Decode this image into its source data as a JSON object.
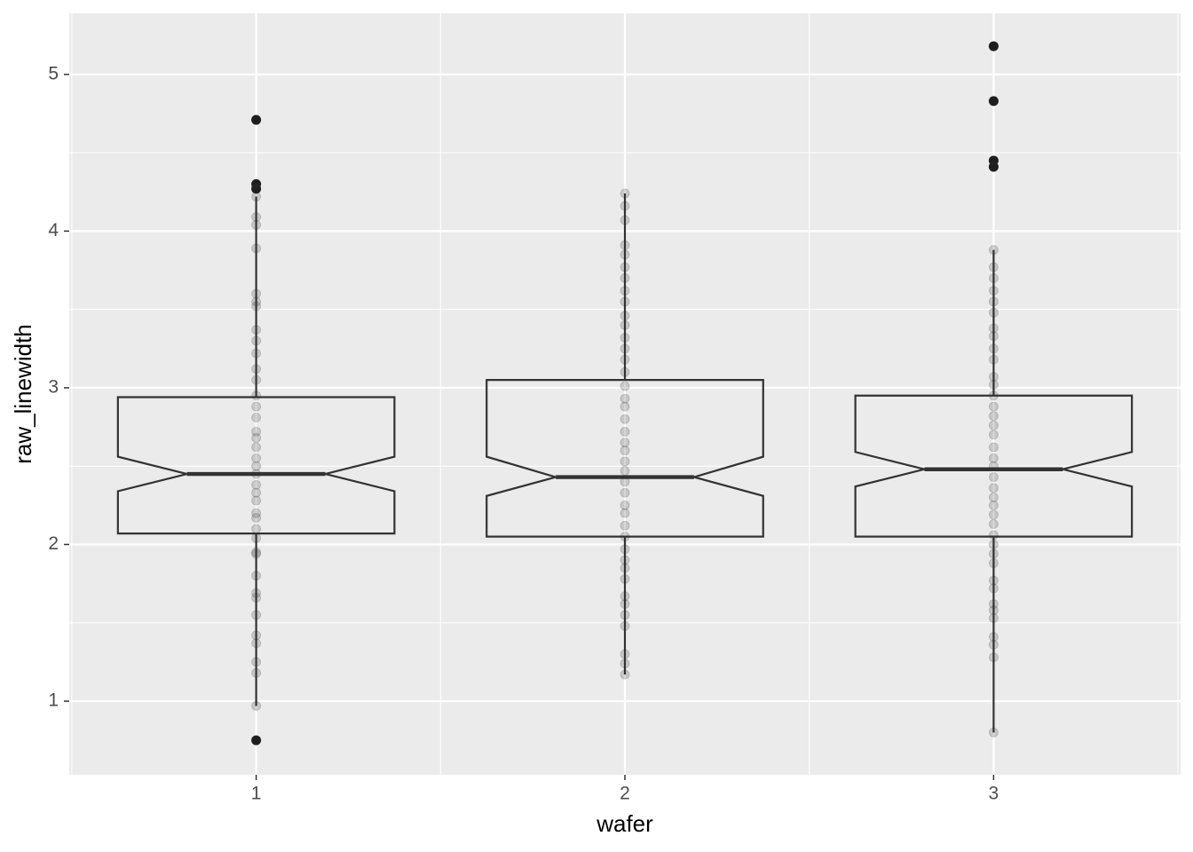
{
  "chart_data": {
    "type": "boxplot",
    "x_label": "wafer",
    "y_label": "raw_linewidth",
    "categories": [
      "1",
      "2",
      "3"
    ],
    "ylim": [
      0.53,
      5.39
    ],
    "yticks": [
      1,
      2,
      3,
      4,
      5
    ],
    "yminorticks": [
      1.5,
      2.5,
      3.5,
      4.5
    ],
    "grid": true,
    "notched": true,
    "box_color": "#333333",
    "point_color": "#333333",
    "outlier_color": "#1a1a1a",
    "boxes": [
      {
        "whisker_low": 0.97,
        "q1": 2.07,
        "notch_low": 2.34,
        "median": 2.45,
        "notch_high": 2.56,
        "q3": 2.94,
        "whisker_high": 4.22,
        "outliers": [
          4.71,
          4.3,
          4.27,
          0.75
        ],
        "points": [
          0.97,
          1.18,
          1.25,
          1.37,
          1.42,
          1.55,
          1.66,
          1.69,
          1.8,
          1.94,
          1.95,
          2.04,
          2.1,
          2.17,
          2.2,
          2.28,
          2.33,
          2.38,
          2.45,
          2.5,
          2.55,
          2.62,
          2.68,
          2.72,
          2.81,
          2.88,
          2.95,
          3.05,
          3.12,
          3.22,
          3.3,
          3.37,
          3.52,
          3.55,
          3.6,
          3.89,
          4.04,
          4.09,
          4.22,
          4.27,
          4.3,
          4.71,
          0.75
        ]
      },
      {
        "whisker_low": 1.17,
        "q1": 2.05,
        "notch_low": 2.31,
        "median": 2.43,
        "notch_high": 2.56,
        "q3": 3.05,
        "whisker_high": 4.24,
        "outliers": [],
        "points": [
          1.17,
          1.24,
          1.3,
          1.48,
          1.55,
          1.62,
          1.67,
          1.78,
          1.85,
          1.9,
          1.97,
          2.05,
          2.12,
          2.2,
          2.25,
          2.33,
          2.4,
          2.47,
          2.53,
          2.6,
          2.65,
          2.72,
          2.8,
          2.88,
          2.93,
          3.01,
          3.1,
          3.18,
          3.25,
          3.32,
          3.4,
          3.46,
          3.55,
          3.62,
          3.7,
          3.77,
          3.85,
          3.91,
          4.07,
          4.16,
          4.24
        ]
      },
      {
        "whisker_low": 0.8,
        "q1": 2.05,
        "notch_low": 2.37,
        "median": 2.48,
        "notch_high": 2.59,
        "q3": 2.95,
        "whisker_high": 3.88,
        "outliers": [
          5.18,
          4.83,
          4.45,
          4.41
        ],
        "points": [
          0.8,
          1.28,
          1.36,
          1.41,
          1.53,
          1.58,
          1.62,
          1.72,
          1.77,
          1.88,
          1.94,
          2.0,
          2.06,
          2.13,
          2.19,
          2.25,
          2.3,
          2.36,
          2.43,
          2.5,
          2.55,
          2.62,
          2.7,
          2.76,
          2.82,
          2.88,
          2.95,
          3.02,
          3.07,
          3.18,
          3.25,
          3.33,
          3.38,
          3.48,
          3.55,
          3.62,
          3.7,
          3.77,
          3.88,
          4.41,
          4.45,
          4.83,
          5.18
        ]
      }
    ]
  }
}
